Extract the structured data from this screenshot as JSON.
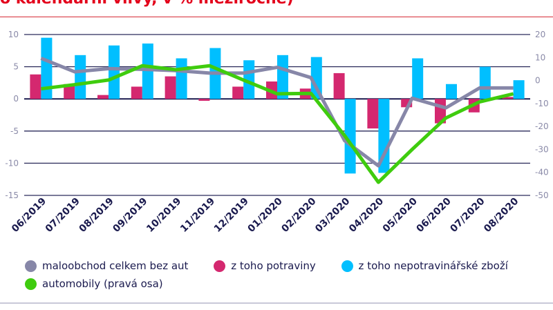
{
  "title": "o kalendářní vlivy, v % meziročně)",
  "chart_data": {
    "type": "bar+line",
    "categories": [
      "06/2019",
      "07/2019",
      "08/2019",
      "09/2019",
      "10/2019",
      "11/2019",
      "12/2019",
      "01/2020",
      "02/2020",
      "03/2020",
      "04/2020",
      "05/2020",
      "06/2020",
      "07/2020",
      "08/2020"
    ],
    "left_axis": {
      "ylim": [
        -15,
        10
      ],
      "ticks": [
        10,
        5,
        0,
        -5,
        -10,
        -15
      ]
    },
    "right_axis": {
      "ylim": [
        -50,
        20
      ],
      "ticks": [
        20,
        10,
        0,
        -10,
        -20,
        -30,
        -40,
        -50
      ]
    },
    "grid": true,
    "legend": "bottom",
    "series": [
      {
        "name": "maloobchod celkem bez aut",
        "type": "line",
        "axis": "left",
        "color": "#8787a8",
        "values": [
          6.3,
          4.2,
          4.7,
          4.6,
          4.4,
          4.0,
          4.0,
          4.9,
          3.3,
          -6.5,
          -10.4,
          0.1,
          -1.4,
          1.7,
          1.7
        ]
      },
      {
        "name": "z toho potraviny",
        "type": "bar",
        "axis": "left",
        "color": "#d4286f",
        "values": [
          3.8,
          2.3,
          0.6,
          1.9,
          3.5,
          -0.3,
          1.9,
          2.7,
          1.6,
          4.0,
          -4.6,
          -1.3,
          -3.8,
          -2.1,
          0.3
        ]
      },
      {
        "name": "z toho nepotravinářské zboží",
        "type": "bar",
        "axis": "left",
        "color": "#00bfff",
        "values": [
          9.5,
          6.8,
          8.3,
          8.6,
          6.3,
          7.9,
          6.0,
          6.8,
          6.5,
          -11.6,
          -11.5,
          6.3,
          2.3,
          5.0,
          2.9
        ]
      },
      {
        "name": "automobily (pravá osa)",
        "type": "line",
        "axis": "right",
        "color": "#3fcc0e",
        "values": [
          -3.6,
          -1.8,
          0.2,
          6.4,
          4.7,
          6.4,
          0.2,
          -5.8,
          -5.6,
          -24,
          -44.3,
          -30,
          -16.3,
          -9.3,
          -5.8
        ]
      }
    ]
  }
}
